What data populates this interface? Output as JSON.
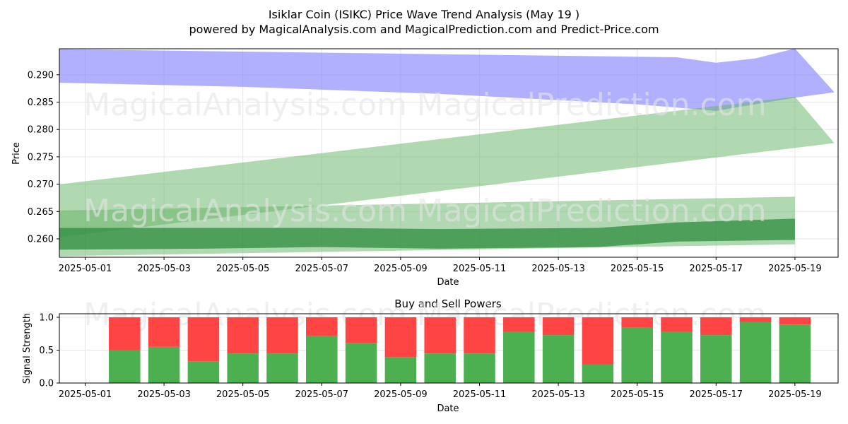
{
  "header": {
    "title": "Isiklar Coin (ISIKC) Price Wave Trend Analysis (May 19 )",
    "subtitle": "powered by MagicalAnalysis.com and MagicalPrediction.com and Predict-Price.com"
  },
  "watermarks": [
    "MagicalAnalysis.com",
    "MagicalPrediction.com"
  ],
  "colors": {
    "blue_band": "#8080ff",
    "green_band": "#63b363",
    "green_dark": "#2e8b3e",
    "buy": "#4caf50",
    "sell": "#ff4444",
    "grid": "#e6e6e6"
  },
  "chart_data": [
    {
      "type": "area",
      "title": "",
      "xlabel": "Date",
      "ylabel": "Price",
      "x_ticks": [
        "2025-05-01",
        "2025-05-03",
        "2025-05-05",
        "2025-05-07",
        "2025-05-09",
        "2025-05-11",
        "2025-05-13",
        "2025-05-15",
        "2025-05-17",
        "2025-05-19"
      ],
      "y_ticks": [
        "0.260",
        "0.265",
        "0.270",
        "0.275",
        "0.280",
        "0.285",
        "0.290"
      ],
      "xlim": [
        "2025-04-29",
        "2025-05-20"
      ],
      "ylim": [
        0.2568,
        0.2947
      ],
      "grid": true,
      "bands": [
        {
          "color": "blue",
          "upper": [
            [
              "2025-04-30",
              0.2947
            ],
            [
              "2025-05-16",
              0.2932
            ],
            [
              "2025-05-17",
              0.2922
            ],
            [
              "2025-05-18",
              0.293
            ],
            [
              "2025-05-19",
              0.2948
            ],
            [
              "2025-05-20",
              0.2868
            ]
          ],
          "lower": [
            [
              "2025-04-30",
              0.2886
            ],
            [
              "2025-05-05",
              0.2878
            ],
            [
              "2025-05-10",
              0.2865
            ],
            [
              "2025-05-15",
              0.2846
            ],
            [
              "2025-05-17",
              0.2834
            ],
            [
              "2025-05-19",
              0.2858
            ],
            [
              "2025-05-20",
              0.2868
            ]
          ]
        },
        {
          "color": "green",
          "upper": [
            [
              "2025-04-29",
              0.2688
            ],
            [
              "2025-05-19",
              0.286
            ]
          ],
          "lower": [
            [
              "2025-04-30",
              0.26
            ],
            [
              "2025-05-20",
              0.2775
            ]
          ]
        },
        {
          "color": "green",
          "upper": [
            [
              "2025-04-29",
              0.265
            ],
            [
              "2025-05-19",
              0.2677
            ]
          ],
          "lower": [
            [
              "2025-04-30",
              0.2568
            ],
            [
              "2025-05-19",
              0.259
            ]
          ]
        },
        {
          "color": "green-dark",
          "upper": [
            [
              "2025-04-30",
              0.262
            ],
            [
              "2025-05-04",
              0.262
            ],
            [
              "2025-05-07",
              0.262
            ],
            [
              "2025-05-10",
              0.2618
            ],
            [
              "2025-05-14",
              0.262
            ],
            [
              "2025-05-16",
              0.263
            ],
            [
              "2025-05-19",
              0.2637
            ]
          ],
          "lower": [
            [
              "2025-04-30",
              0.258
            ],
            [
              "2025-05-04",
              0.2582
            ],
            [
              "2025-05-07",
              0.2585
            ],
            [
              "2025-05-10",
              0.2582
            ],
            [
              "2025-05-14",
              0.2585
            ],
            [
              "2025-05-16",
              0.2595
            ],
            [
              "2025-05-19",
              0.2598
            ]
          ]
        }
      ]
    },
    {
      "type": "bar",
      "title": "Buy and Sell Powers",
      "xlabel": "Date",
      "ylabel": "Signal Strength",
      "x_ticks": [
        "2025-05-01",
        "2025-05-03",
        "2025-05-05",
        "2025-05-07",
        "2025-05-09",
        "2025-05-11",
        "2025-05-13",
        "2025-05-15",
        "2025-05-17",
        "2025-05-19"
      ],
      "y_ticks": [
        "0.0",
        "0.5",
        "1.0"
      ],
      "ylim": [
        0,
        1.05
      ],
      "stacked": true,
      "categories": [
        "2025-05-02",
        "2025-05-03",
        "2025-05-04",
        "2025-05-05",
        "2025-05-06",
        "2025-05-07",
        "2025-05-08",
        "2025-05-09",
        "2025-05-10",
        "2025-05-11",
        "2025-05-12",
        "2025-05-13",
        "2025-05-14",
        "2025-05-15",
        "2025-05-16",
        "2025-05-17",
        "2025-05-18",
        "2025-05-19"
      ],
      "series": [
        {
          "values": [
            0.5,
            0.55,
            0.33,
            0.45,
            0.45,
            0.72,
            0.61,
            0.39,
            0.45,
            0.45,
            0.78,
            0.73,
            0.28,
            0.84,
            0.78,
            0.73,
            0.93,
            0.89
          ]
        },
        {
          "values": [
            0.5,
            0.45,
            0.67,
            0.55,
            0.55,
            0.28,
            0.39,
            0.61,
            0.55,
            0.55,
            0.22,
            0.27,
            0.72,
            0.16,
            0.22,
            0.27,
            0.07,
            0.11
          ]
        }
      ]
    }
  ]
}
